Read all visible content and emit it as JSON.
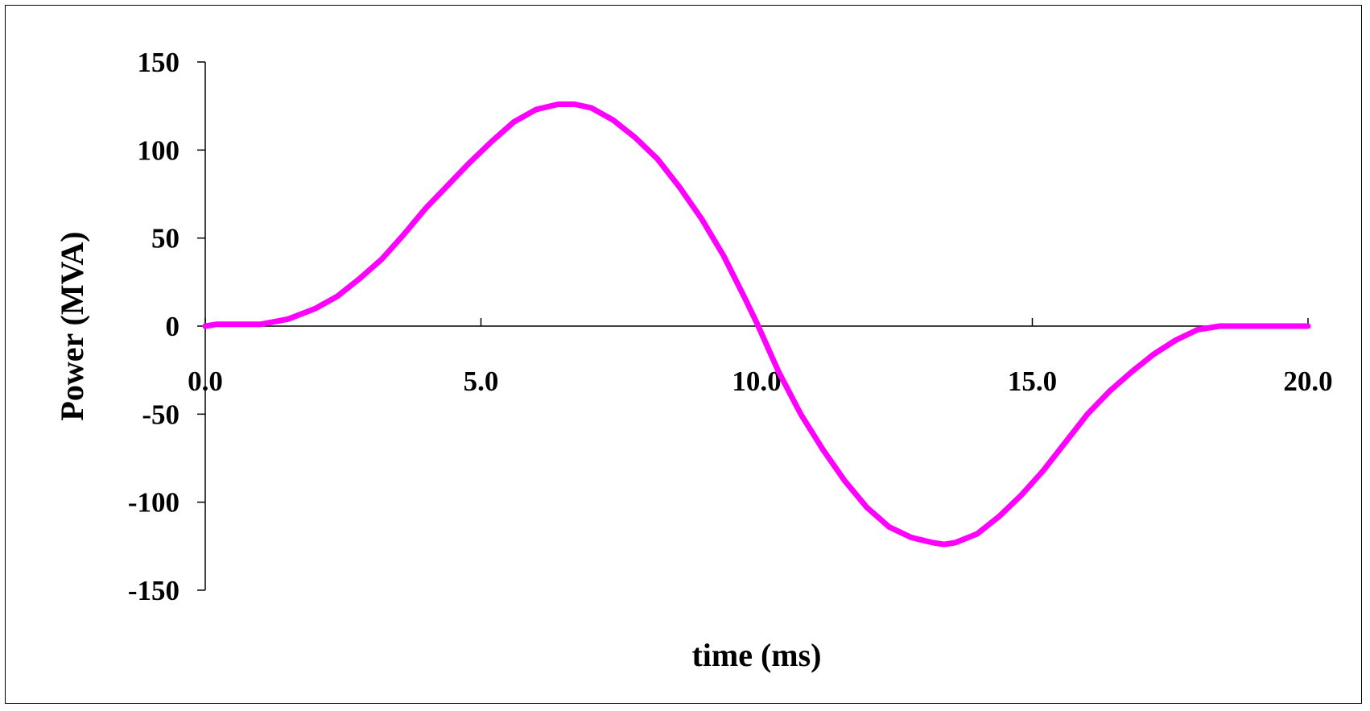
{
  "chart_data": {
    "type": "line",
    "xlabel": "time (ms)",
    "ylabel": "Power (MVA)",
    "xlim": [
      0,
      20
    ],
    "ylim": [
      -150,
      150
    ],
    "x_ticks": [
      0,
      5,
      10,
      15,
      20
    ],
    "x_tick_labels": [
      "0.0",
      "5.0",
      "10.0",
      "15.0",
      "20.0"
    ],
    "y_ticks": [
      150,
      100,
      50,
      0,
      -50,
      -100,
      -150
    ],
    "y_tick_labels": [
      "150",
      "100",
      "50",
      "0",
      "-50",
      "-100",
      "-150"
    ],
    "grid": false,
    "legend": "none",
    "series": [
      {
        "color": "#ff00ff",
        "x": [
          0,
          0.2,
          0.5,
          1.0,
          1.5,
          2.0,
          2.4,
          2.8,
          3.2,
          3.6,
          4.0,
          4.4,
          4.8,
          5.2,
          5.6,
          6.0,
          6.4,
          6.7,
          7.0,
          7.4,
          7.8,
          8.2,
          8.6,
          9.0,
          9.4,
          9.8,
          10.0,
          10.4,
          10.8,
          11.2,
          11.6,
          12.0,
          12.4,
          12.8,
          13.2,
          13.4,
          13.6,
          14.0,
          14.4,
          14.8,
          15.2,
          15.6,
          16.0,
          16.4,
          16.8,
          17.2,
          17.6,
          18.0,
          18.4,
          18.8,
          19.2,
          19.6,
          20.0
        ],
        "y": [
          0,
          1,
          1,
          1,
          4,
          10,
          17,
          27,
          38,
          52,
          67,
          80,
          93,
          105,
          116,
          123,
          126,
          126,
          124,
          117,
          107,
          95,
          79,
          61,
          40,
          15,
          2,
          -26,
          -50,
          -70,
          -88,
          -103,
          -114,
          -120,
          -123,
          -124,
          -123,
          -118,
          -108,
          -96,
          -82,
          -66,
          -50,
          -37,
          -26,
          -16,
          -8,
          -2,
          0,
          0,
          0,
          0,
          0
        ]
      }
    ]
  }
}
